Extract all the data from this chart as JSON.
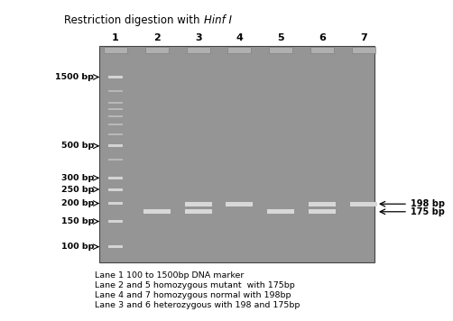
{
  "title_normal": "Restriction digestion with ",
  "title_italic": "Hinf I",
  "lane_labels": [
    "1",
    "2",
    "3",
    "4",
    "5",
    "6",
    "7"
  ],
  "marker_labels": [
    "1500 bp",
    "500 bp",
    "300 bp",
    "250 bp",
    "200 bp",
    "150 bp",
    "100 bp"
  ],
  "marker_bps": [
    1500,
    500,
    300,
    250,
    200,
    150,
    100
  ],
  "marker_all_bps": [
    1500,
    1200,
    1000,
    900,
    800,
    700,
    600,
    500,
    400,
    300,
    250,
    200,
    150,
    100
  ],
  "caption_lines": [
    "Lane 1 100 to 1500bp DNA marker",
    "Lane 2 and 5 homozygous mutant  with 175bp",
    "Lane 4 and 7 homozygous normal with 198bp",
    "Lane 3 and 6 heterozygous with 198 and 175bp"
  ],
  "gel_color": "#959595",
  "marker_lane_color": "#c8c8c8",
  "well_color": "#b0b0b0",
  "band_sample_color": "#d8d8d8",
  "band_marker_color": "#c0c0c0",
  "outer_bg": "#ffffff",
  "right_label_198": "198 bp",
  "right_label_175": "175 bp"
}
